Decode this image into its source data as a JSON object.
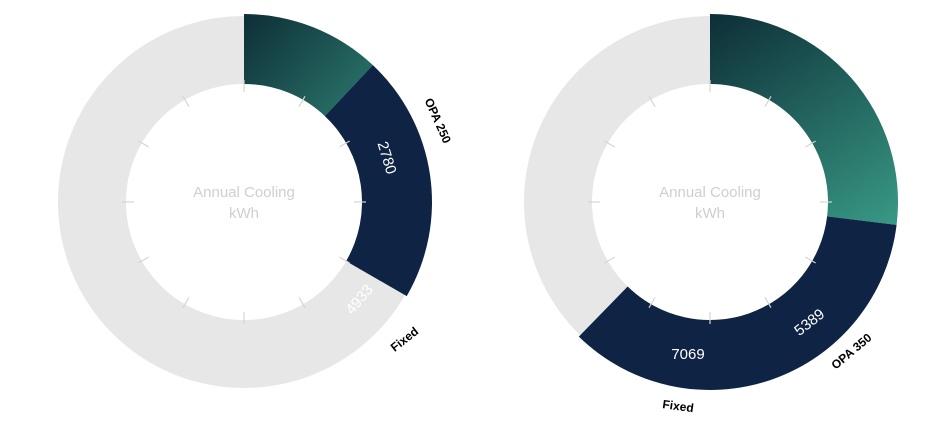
{
  "colors": {
    "track": "#e7e7e7",
    "fixed": "#0f2444",
    "opa_dark": "#0e3038",
    "opa_light": "#3a9d88",
    "tick": "#d5d5d5",
    "center_text": "#cfcfcf"
  },
  "chart_data": [
    {
      "type": "pie",
      "variant": "donut",
      "center_label": [
        "Annual Cooling",
        "kWh"
      ],
      "segments": [
        {
          "name": "OPA 250",
          "value": 2780
        },
        {
          "name": "Fixed",
          "value": 4933
        }
      ]
    },
    {
      "type": "pie",
      "variant": "donut",
      "center_label": [
        "Annual Cooling",
        "kWh"
      ],
      "segments": [
        {
          "name": "OPA 350",
          "value": 5389
        },
        {
          "name": "Fixed",
          "value": 7069
        }
      ]
    }
  ]
}
